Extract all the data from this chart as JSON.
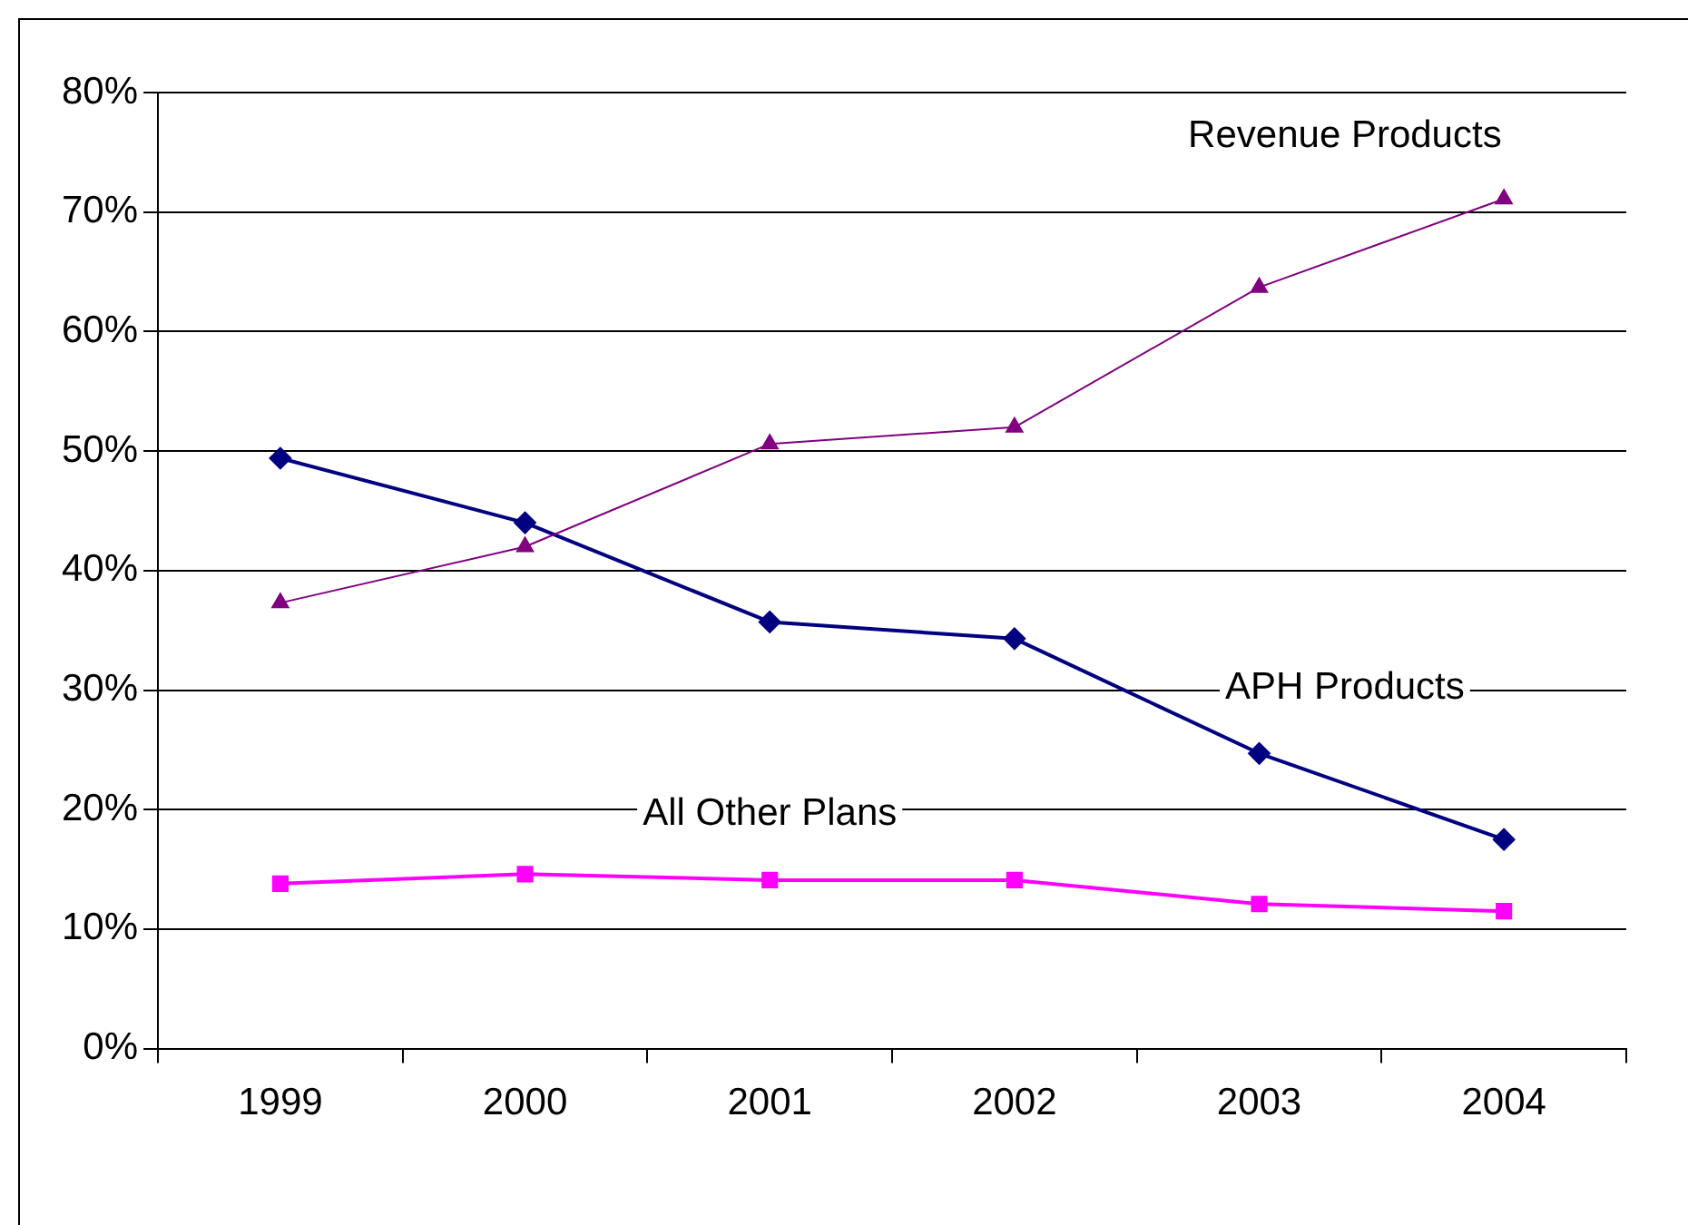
{
  "chart_data": {
    "type": "line",
    "categories": [
      "1999",
      "2000",
      "2001",
      "2002",
      "2003",
      "2004"
    ],
    "series": [
      {
        "name": "Revenue Products",
        "color": "#800080",
        "marker": "triangle",
        "values": [
          37.3,
          42,
          50.6,
          52,
          63.7,
          71.1
        ]
      },
      {
        "name": "APH Products",
        "color": "#000080",
        "marker": "diamond",
        "values": [
          49.4,
          44,
          35.7,
          34.3,
          24.7,
          17.5
        ]
      },
      {
        "name": "All Other Plans",
        "color": "#ff00ff",
        "marker": "square",
        "values": [
          13.8,
          14.6,
          14.1,
          14.1,
          12.1,
          11.5
        ]
      }
    ],
    "ylim": [
      0,
      80
    ],
    "yticks": [
      {
        "value": 0,
        "label": "0%"
      },
      {
        "value": 10,
        "label": "10%"
      },
      {
        "value": 20,
        "label": "20%"
      },
      {
        "value": 30,
        "label": "30%"
      },
      {
        "value": 40,
        "label": "40%"
      },
      {
        "value": 50,
        "label": "50%"
      },
      {
        "value": 60,
        "label": "60%"
      },
      {
        "value": 70,
        "label": "70%"
      },
      {
        "value": 80,
        "label": "80%"
      }
    ],
    "grid": "y",
    "legend": false
  }
}
